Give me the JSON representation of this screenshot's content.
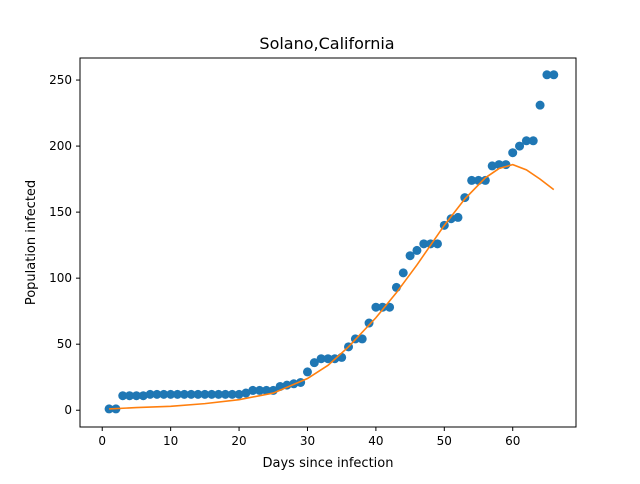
{
  "chart_data": {
    "type": "scatter",
    "title": "Solano,California",
    "xlabel": "Days since infection",
    "ylabel": "Population infected",
    "xlim": [
      -3.25,
      69.25
    ],
    "ylim": [
      -12.7,
      266.7
    ],
    "xticks": [
      0,
      10,
      20,
      30,
      40,
      50,
      60
    ],
    "yticks": [
      0,
      50,
      100,
      150,
      200,
      250
    ],
    "grid": false,
    "legend": "none",
    "series": [
      {
        "kind": "scatter",
        "color": "#1f77b4",
        "x": [
          1,
          2,
          3,
          4,
          5,
          6,
          7,
          8,
          9,
          10,
          11,
          12,
          13,
          14,
          15,
          16,
          17,
          18,
          19,
          20,
          21,
          22,
          23,
          24,
          25,
          26,
          27,
          28,
          29,
          30,
          31,
          32,
          33,
          34,
          35,
          36,
          37,
          38,
          39,
          40,
          41,
          42,
          43,
          44,
          45,
          46,
          47,
          48,
          49,
          50,
          51,
          52,
          53,
          54,
          55,
          56,
          57,
          58,
          59,
          60,
          61,
          62,
          63,
          64,
          65,
          66
        ],
        "y": [
          1,
          1,
          11,
          11,
          11,
          11,
          12,
          12,
          12,
          12,
          12,
          12,
          12,
          12,
          12,
          12,
          12,
          12,
          12,
          12,
          13,
          15,
          15,
          15,
          15,
          18,
          19,
          20,
          21,
          29,
          36,
          39,
          39,
          39,
          40,
          48,
          54,
          54,
          66,
          78,
          78,
          78,
          93,
          104,
          117,
          121,
          126,
          126,
          126,
          140,
          145,
          146,
          161,
          174,
          174,
          174,
          185,
          186,
          186,
          195,
          200,
          204,
          204,
          231,
          254,
          254
        ]
      },
      {
        "kind": "line",
        "color": "#ff7f0e",
        "x": [
          1,
          5,
          10,
          15,
          20,
          25,
          30,
          33,
          36,
          40,
          43,
          46,
          50,
          53,
          56,
          58,
          60,
          62,
          64,
          66
        ],
        "y": [
          1,
          2,
          3,
          5,
          8,
          13,
          24,
          34,
          48,
          70,
          89,
          110,
          140,
          160,
          176,
          183,
          186,
          182,
          175,
          167
        ]
      }
    ]
  }
}
